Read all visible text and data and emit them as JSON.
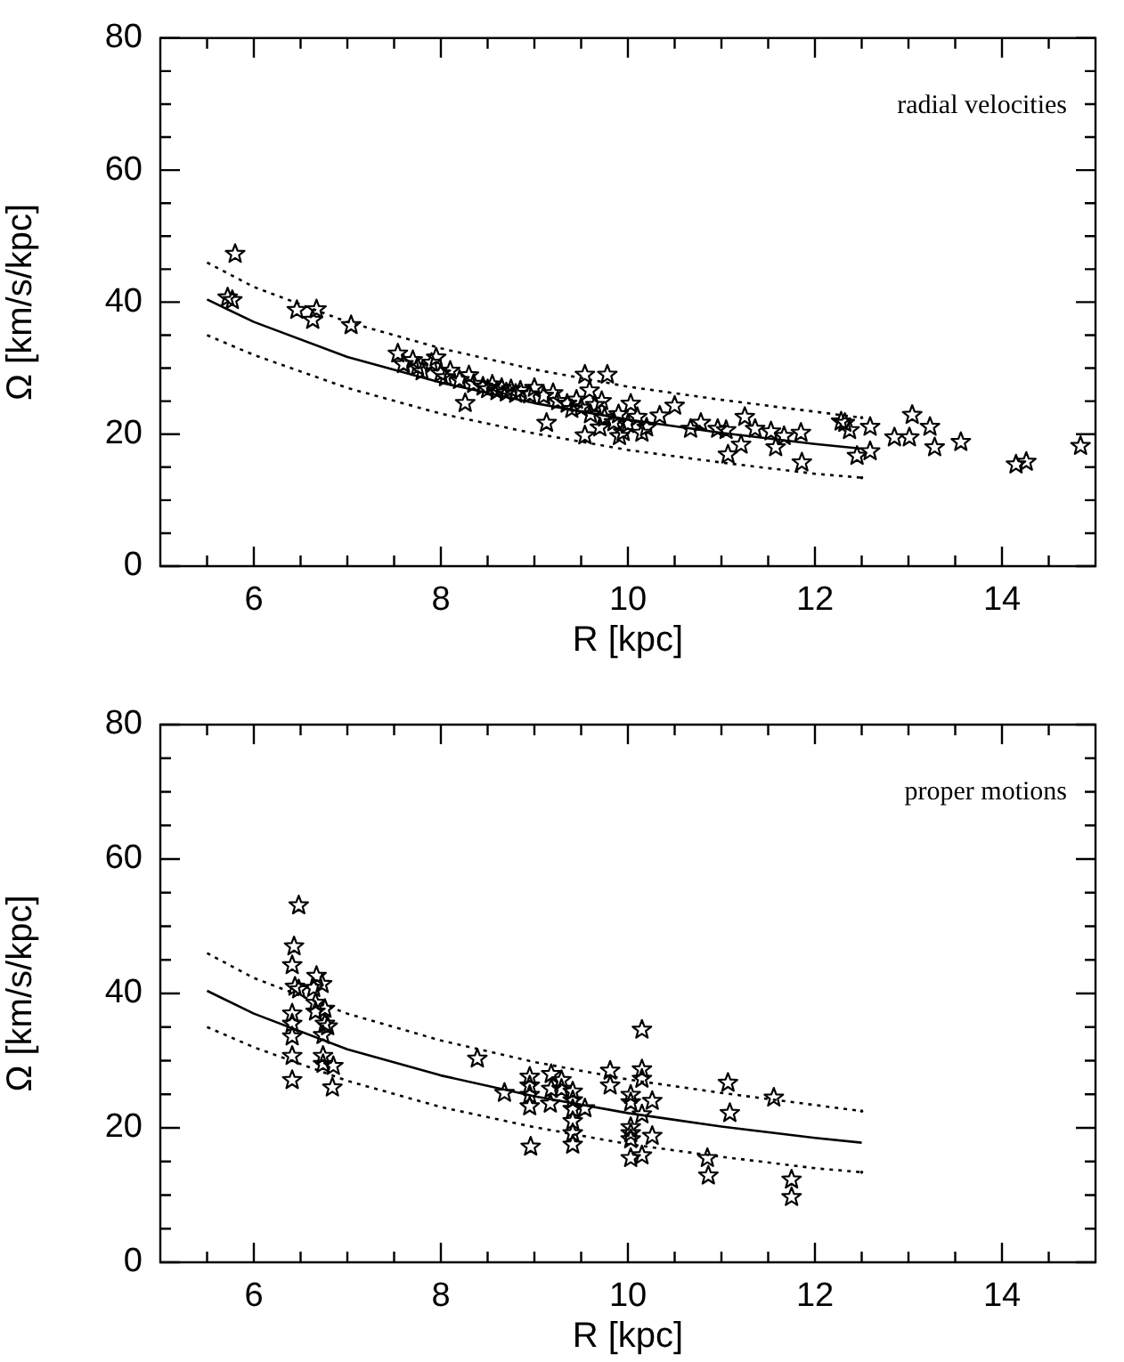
{
  "chart_data": [
    {
      "type": "scatter",
      "xlabel": "R [kpc]",
      "ylabel": "Ω [km/s/kpc]",
      "annotations": [
        "radial velocities"
      ],
      "xlim": [
        5,
        15
      ],
      "ylim": [
        0,
        80
      ],
      "xticks": [
        {
          "value": 5.5,
          "label": null
        },
        6,
        {
          "value": 6.5,
          "label": null
        },
        {
          "value": 7,
          "label": null
        },
        {
          "value": 7.5,
          "label": null
        },
        8,
        {
          "value": 8.5,
          "label": null
        },
        {
          "value": 9,
          "label": null
        },
        {
          "value": 9.5,
          "label": null
        },
        10,
        {
          "value": 10.5,
          "label": null
        },
        {
          "value": 11,
          "label": null
        },
        {
          "value": 11.5,
          "label": null
        },
        12,
        {
          "value": 12.5,
          "label": null
        },
        {
          "value": 13,
          "label": null
        },
        {
          "value": 13.5,
          "label": null
        },
        14,
        {
          "value": 14.5,
          "label": null
        }
      ],
      "yticks": [
        0,
        {
          "value": 5,
          "label": null
        },
        {
          "value": 10,
          "label": null
        },
        {
          "value": 15,
          "label": null
        },
        20,
        {
          "value": 25,
          "label": null
        },
        {
          "value": 30,
          "label": null
        },
        {
          "value": 35,
          "label": null
        },
        40,
        {
          "value": 45,
          "label": null
        },
        {
          "value": 50,
          "label": null
        },
        {
          "value": 55,
          "label": null
        },
        60,
        {
          "value": 65,
          "label": null
        },
        {
          "value": 70,
          "label": null
        },
        {
          "value": 75,
          "label": null
        },
        80
      ],
      "grid": false,
      "legend": false,
      "series": [
        {
          "type": "scatter",
          "marker": "star",
          "color": "#000000",
          "x": [
            5.8,
            5.72,
            5.77,
            6.46,
            6.63,
            6.67,
            7.04,
            7.54,
            7.6,
            7.7,
            7.75,
            7.8,
            7.9,
            7.95,
            8.0,
            8.05,
            8.1,
            8.2,
            8.26,
            8.3,
            8.35,
            8.45,
            8.5,
            8.55,
            8.6,
            8.65,
            8.7,
            8.75,
            8.8,
            8.85,
            8.95,
            9.0,
            9.1,
            9.13,
            9.2,
            9.25,
            9.35,
            9.4,
            9.45,
            9.5,
            9.54,
            9.54,
            9.59,
            9.6,
            9.65,
            9.7,
            9.72,
            9.75,
            9.78,
            9.85,
            9.9,
            9.91,
            9.95,
            10.0,
            10.03,
            10.1,
            10.15,
            10.2,
            10.34,
            10.5,
            10.67,
            10.78,
            10.96,
            11.05,
            11.07,
            11.21,
            11.25,
            11.36,
            11.53,
            11.58,
            11.67,
            11.85,
            11.86,
            12.28,
            12.32,
            12.37,
            12.45,
            12.59,
            12.59,
            12.85,
            13.01,
            13.04,
            13.23,
            13.28,
            13.56,
            14.15,
            14.26,
            14.84
          ],
          "values": [
            47.3,
            40.7,
            40.3,
            38.8,
            37.3,
            38.9,
            36.5,
            32.2,
            30.6,
            31.2,
            30.2,
            29.5,
            30.8,
            31.6,
            29.2,
            28.6,
            29.6,
            28.2,
            24.7,
            28.9,
            27.6,
            27.2,
            26.8,
            27.5,
            26.5,
            27.0,
            26.3,
            26.8,
            26.1,
            26.6,
            26.0,
            27.0,
            25.8,
            21.7,
            26.2,
            25.0,
            24.6,
            23.8,
            25.2,
            24.0,
            29.0,
            19.8,
            26.6,
            23.0,
            24.4,
            21.0,
            25.0,
            22.5,
            29.0,
            21.8,
            23.0,
            19.7,
            20.3,
            21.5,
            24.6,
            22.6,
            20.2,
            21.0,
            22.8,
            24.3,
            20.8,
            21.7,
            20.8,
            20.6,
            16.9,
            18.4,
            22.6,
            20.8,
            20.4,
            18.0,
            19.7,
            20.2,
            15.7,
            21.9,
            21.7,
            20.6,
            16.7,
            21.1,
            17.4,
            19.5,
            19.5,
            22.9,
            21.1,
            18.0,
            18.8,
            15.4,
            15.8,
            18.2
          ]
        },
        {
          "type": "line",
          "marker": "none",
          "line_style": "solid",
          "color": "#000000",
          "x": [
            5.5,
            6,
            7,
            8,
            9,
            10,
            11,
            12,
            12.5
          ],
          "values": [
            40.4,
            37,
            31.7,
            27.8,
            24.7,
            22.2,
            20.2,
            18.5,
            17.8
          ]
        },
        {
          "type": "line",
          "marker": "none",
          "line_style": "dotted",
          "color": "#000000",
          "x": [
            5.5,
            6,
            7,
            8,
            9,
            10,
            11,
            12,
            12.5
          ],
          "values": [
            46,
            42.3,
            37,
            33,
            29.8,
            27.2,
            25.2,
            23.4,
            22.5
          ]
        },
        {
          "type": "line",
          "marker": "none",
          "line_style": "dotted",
          "color": "#000000",
          "x": [
            5.5,
            6,
            7,
            8,
            9,
            10,
            11,
            12,
            12.5
          ],
          "values": [
            35,
            32,
            27,
            23.1,
            20.1,
            17.6,
            15.7,
            14,
            13.4
          ]
        }
      ]
    },
    {
      "type": "scatter",
      "xlabel": "R [kpc]",
      "ylabel": "Ω [km/s/kpc]",
      "annotations": [
        "proper motions"
      ],
      "xlim": [
        5,
        15
      ],
      "ylim": [
        0,
        80
      ],
      "xticks": [
        {
          "value": 5.5,
          "label": null
        },
        6,
        {
          "value": 6.5,
          "label": null
        },
        {
          "value": 7,
          "label": null
        },
        {
          "value": 7.5,
          "label": null
        },
        8,
        {
          "value": 8.5,
          "label": null
        },
        {
          "value": 9,
          "label": null
        },
        {
          "value": 9.5,
          "label": null
        },
        10,
        {
          "value": 10.5,
          "label": null
        },
        {
          "value": 11,
          "label": null
        },
        {
          "value": 11.5,
          "label": null
        },
        12,
        {
          "value": 12.5,
          "label": null
        },
        {
          "value": 13,
          "label": null
        },
        {
          "value": 13.5,
          "label": null
        },
        14,
        {
          "value": 14.5,
          "label": null
        }
      ],
      "yticks": [
        0,
        {
          "value": 5,
          "label": null
        },
        {
          "value": 10,
          "label": null
        },
        {
          "value": 15,
          "label": null
        },
        20,
        {
          "value": 25,
          "label": null
        },
        {
          "value": 30,
          "label": null
        },
        {
          "value": 35,
          "label": null
        },
        40,
        {
          "value": 45,
          "label": null
        },
        {
          "value": 50,
          "label": null
        },
        {
          "value": 55,
          "label": null
        },
        60,
        {
          "value": 65,
          "label": null
        },
        {
          "value": 70,
          "label": null
        },
        {
          "value": 75,
          "label": null
        },
        80
      ],
      "grid": false,
      "legend": false,
      "series": [
        {
          "type": "scatter",
          "marker": "star",
          "color": "#000000",
          "x": [
            6.48,
            6.43,
            6.41,
            6.44,
            6.48,
            6.41,
            6.41,
            6.41,
            6.41,
            6.41,
            6.67,
            6.64,
            6.73,
            6.66,
            6.66,
            6.76,
            6.76,
            6.79,
            6.74,
            6.74,
            6.74,
            6.85,
            6.84,
            8.39,
            8.68,
            8.95,
            8.95,
            8.95,
            8.95,
            8.96,
            9.18,
            9.18,
            9.17,
            9.29,
            9.29,
            9.41,
            9.41,
            9.41,
            9.54,
            9.41,
            9.41,
            9.41,
            9.81,
            9.81,
            10.03,
            10.03,
            10.03,
            10.03,
            10.03,
            10.03,
            10.15,
            10.15,
            10.15,
            10.15,
            10.15,
            10.26,
            10.26,
            10.85,
            10.86,
            11.07,
            11.09,
            11.56,
            11.75,
            11.75
          ],
          "values": [
            53.1,
            47.0,
            44.2,
            41.0,
            40.6,
            37.0,
            35.5,
            33.6,
            30.7,
            27.1,
            42.6,
            40.8,
            41.4,
            38.6,
            37.3,
            37.7,
            35.5,
            35.1,
            33.8,
            30.7,
            29.5,
            29.2,
            26.0,
            30.3,
            25.2,
            27.6,
            26.3,
            24.9,
            23.2,
            17.2,
            28.0,
            25.8,
            23.6,
            27.1,
            25.8,
            25.4,
            24.1,
            22.8,
            22.9,
            21.0,
            19.2,
            17.5,
            28.5,
            26.3,
            24.9,
            23.8,
            20.1,
            19.2,
            18.3,
            15.5,
            15.9,
            34.6,
            28.7,
            27.3,
            22.0,
            24.0,
            18.8,
            15.5,
            12.9,
            26.7,
            22.2,
            24.5,
            12.3,
            9.7
          ]
        },
        {
          "type": "line",
          "marker": "none",
          "line_style": "solid",
          "color": "#000000",
          "x": [
            5.5,
            6,
            7,
            8,
            9,
            10,
            11,
            12,
            12.5
          ],
          "values": [
            40.4,
            37,
            31.7,
            27.8,
            24.7,
            22.2,
            20.2,
            18.5,
            17.8
          ]
        },
        {
          "type": "line",
          "marker": "none",
          "line_style": "dotted",
          "color": "#000000",
          "x": [
            5.5,
            6,
            7,
            8,
            9,
            10,
            11,
            12,
            12.5
          ],
          "values": [
            46,
            42.3,
            37,
            33,
            29.8,
            27.2,
            25.2,
            23.4,
            22.5
          ]
        },
        {
          "type": "line",
          "marker": "none",
          "line_style": "dotted",
          "color": "#000000",
          "x": [
            5.5,
            6,
            7,
            8,
            9,
            10,
            11,
            12,
            12.5
          ],
          "values": [
            35,
            32,
            27,
            23.1,
            20.1,
            17.6,
            15.7,
            14,
            13.4
          ]
        }
      ]
    }
  ]
}
